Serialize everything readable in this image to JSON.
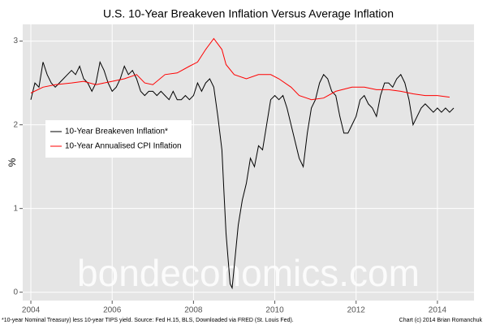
{
  "chart_data": {
    "type": "line",
    "title": "U.S. 10-Year Breakeven Inflation Versus Average Inflation",
    "y_label": "%",
    "note": "*10-year Nominal Treasury) less 10-year TIPS yield. Source: Fed H.15, BLS, Downloaded via FRED (St. Louis Fed).",
    "credit": "Chart (c) 2014 Brian Romanchuk",
    "watermark": "bondeconomics.com",
    "xlim": [
      2003.8,
      2014.9
    ],
    "xticks": [
      2004,
      2006,
      2008,
      2010,
      2012,
      2014
    ],
    "ylim": [
      -0.1,
      3.2
    ],
    "yticks": [
      0,
      1,
      2,
      3
    ],
    "grid": true,
    "legend_position": "left",
    "series": [
      {
        "name": "10-Year Breakeven Inflation*",
        "color": "#000000",
        "x": [
          2004.0,
          2004.1,
          2004.2,
          2004.3,
          2004.4,
          2004.5,
          2004.6,
          2004.7,
          2004.8,
          2004.9,
          2005.0,
          2005.1,
          2005.2,
          2005.3,
          2005.4,
          2005.5,
          2005.6,
          2005.7,
          2005.8,
          2005.9,
          2006.0,
          2006.1,
          2006.2,
          2006.3,
          2006.4,
          2006.5,
          2006.6,
          2006.7,
          2006.8,
          2006.9,
          2007.0,
          2007.1,
          2007.2,
          2007.3,
          2007.4,
          2007.5,
          2007.6,
          2007.7,
          2007.8,
          2007.9,
          2008.0,
          2008.1,
          2008.2,
          2008.3,
          2008.4,
          2008.5,
          2008.6,
          2008.7,
          2008.75,
          2008.8,
          2008.85,
          2008.9,
          2008.95,
          2009.0,
          2009.1,
          2009.2,
          2009.3,
          2009.4,
          2009.5,
          2009.6,
          2009.7,
          2009.8,
          2009.9,
          2010.0,
          2010.1,
          2010.2,
          2010.3,
          2010.4,
          2010.5,
          2010.6,
          2010.7,
          2010.8,
          2010.9,
          2011.0,
          2011.1,
          2011.2,
          2011.3,
          2011.4,
          2011.5,
          2011.6,
          2011.7,
          2011.8,
          2011.9,
          2012.0,
          2012.1,
          2012.2,
          2012.3,
          2012.4,
          2012.5,
          2012.6,
          2012.7,
          2012.8,
          2012.9,
          2013.0,
          2013.1,
          2013.2,
          2013.3,
          2013.4,
          2013.5,
          2013.6,
          2013.7,
          2013.8,
          2013.9,
          2014.0,
          2014.1,
          2014.2,
          2014.3,
          2014.4
        ],
        "values": [
          2.3,
          2.5,
          2.45,
          2.75,
          2.6,
          2.5,
          2.45,
          2.5,
          2.55,
          2.6,
          2.65,
          2.6,
          2.7,
          2.55,
          2.5,
          2.4,
          2.5,
          2.75,
          2.65,
          2.5,
          2.4,
          2.45,
          2.55,
          2.7,
          2.6,
          2.65,
          2.55,
          2.4,
          2.35,
          2.4,
          2.4,
          2.35,
          2.4,
          2.35,
          2.3,
          2.4,
          2.3,
          2.3,
          2.35,
          2.3,
          2.35,
          2.5,
          2.4,
          2.5,
          2.55,
          2.45,
          2.1,
          1.7,
          1.2,
          0.7,
          0.4,
          0.1,
          0.05,
          0.3,
          0.8,
          1.1,
          1.3,
          1.6,
          1.5,
          1.75,
          1.7,
          2.0,
          2.3,
          2.35,
          2.3,
          2.35,
          2.2,
          2.0,
          1.8,
          1.6,
          1.5,
          1.9,
          2.2,
          2.3,
          2.5,
          2.6,
          2.55,
          2.4,
          2.35,
          2.1,
          1.9,
          1.9,
          2.0,
          2.1,
          2.3,
          2.35,
          2.25,
          2.2,
          2.1,
          2.35,
          2.5,
          2.5,
          2.45,
          2.55,
          2.6,
          2.5,
          2.3,
          2.0,
          2.1,
          2.2,
          2.25,
          2.2,
          2.15,
          2.2,
          2.15,
          2.2,
          2.15,
          2.2
        ]
      },
      {
        "name": "10-Year Annualised CPI Inflation",
        "color": "#ff0000",
        "x": [
          2004.0,
          2004.3,
          2004.6,
          2005.0,
          2005.3,
          2005.6,
          2006.0,
          2006.3,
          2006.6,
          2006.8,
          2007.0,
          2007.3,
          2007.6,
          2007.9,
          2008.1,
          2008.3,
          2008.5,
          2008.7,
          2008.8,
          2009.0,
          2009.3,
          2009.6,
          2009.9,
          2010.1,
          2010.4,
          2010.6,
          2010.9,
          2011.2,
          2011.5,
          2011.9,
          2012.2,
          2012.5,
          2012.8,
          2013.1,
          2013.4,
          2013.7,
          2014.0,
          2014.3
        ],
        "values": [
          2.38,
          2.45,
          2.48,
          2.5,
          2.52,
          2.48,
          2.52,
          2.55,
          2.6,
          2.5,
          2.48,
          2.6,
          2.62,
          2.7,
          2.75,
          2.9,
          3.03,
          2.9,
          2.72,
          2.6,
          2.55,
          2.6,
          2.6,
          2.55,
          2.45,
          2.35,
          2.3,
          2.32,
          2.4,
          2.45,
          2.45,
          2.42,
          2.42,
          2.4,
          2.37,
          2.35,
          2.35,
          2.33
        ]
      }
    ]
  }
}
